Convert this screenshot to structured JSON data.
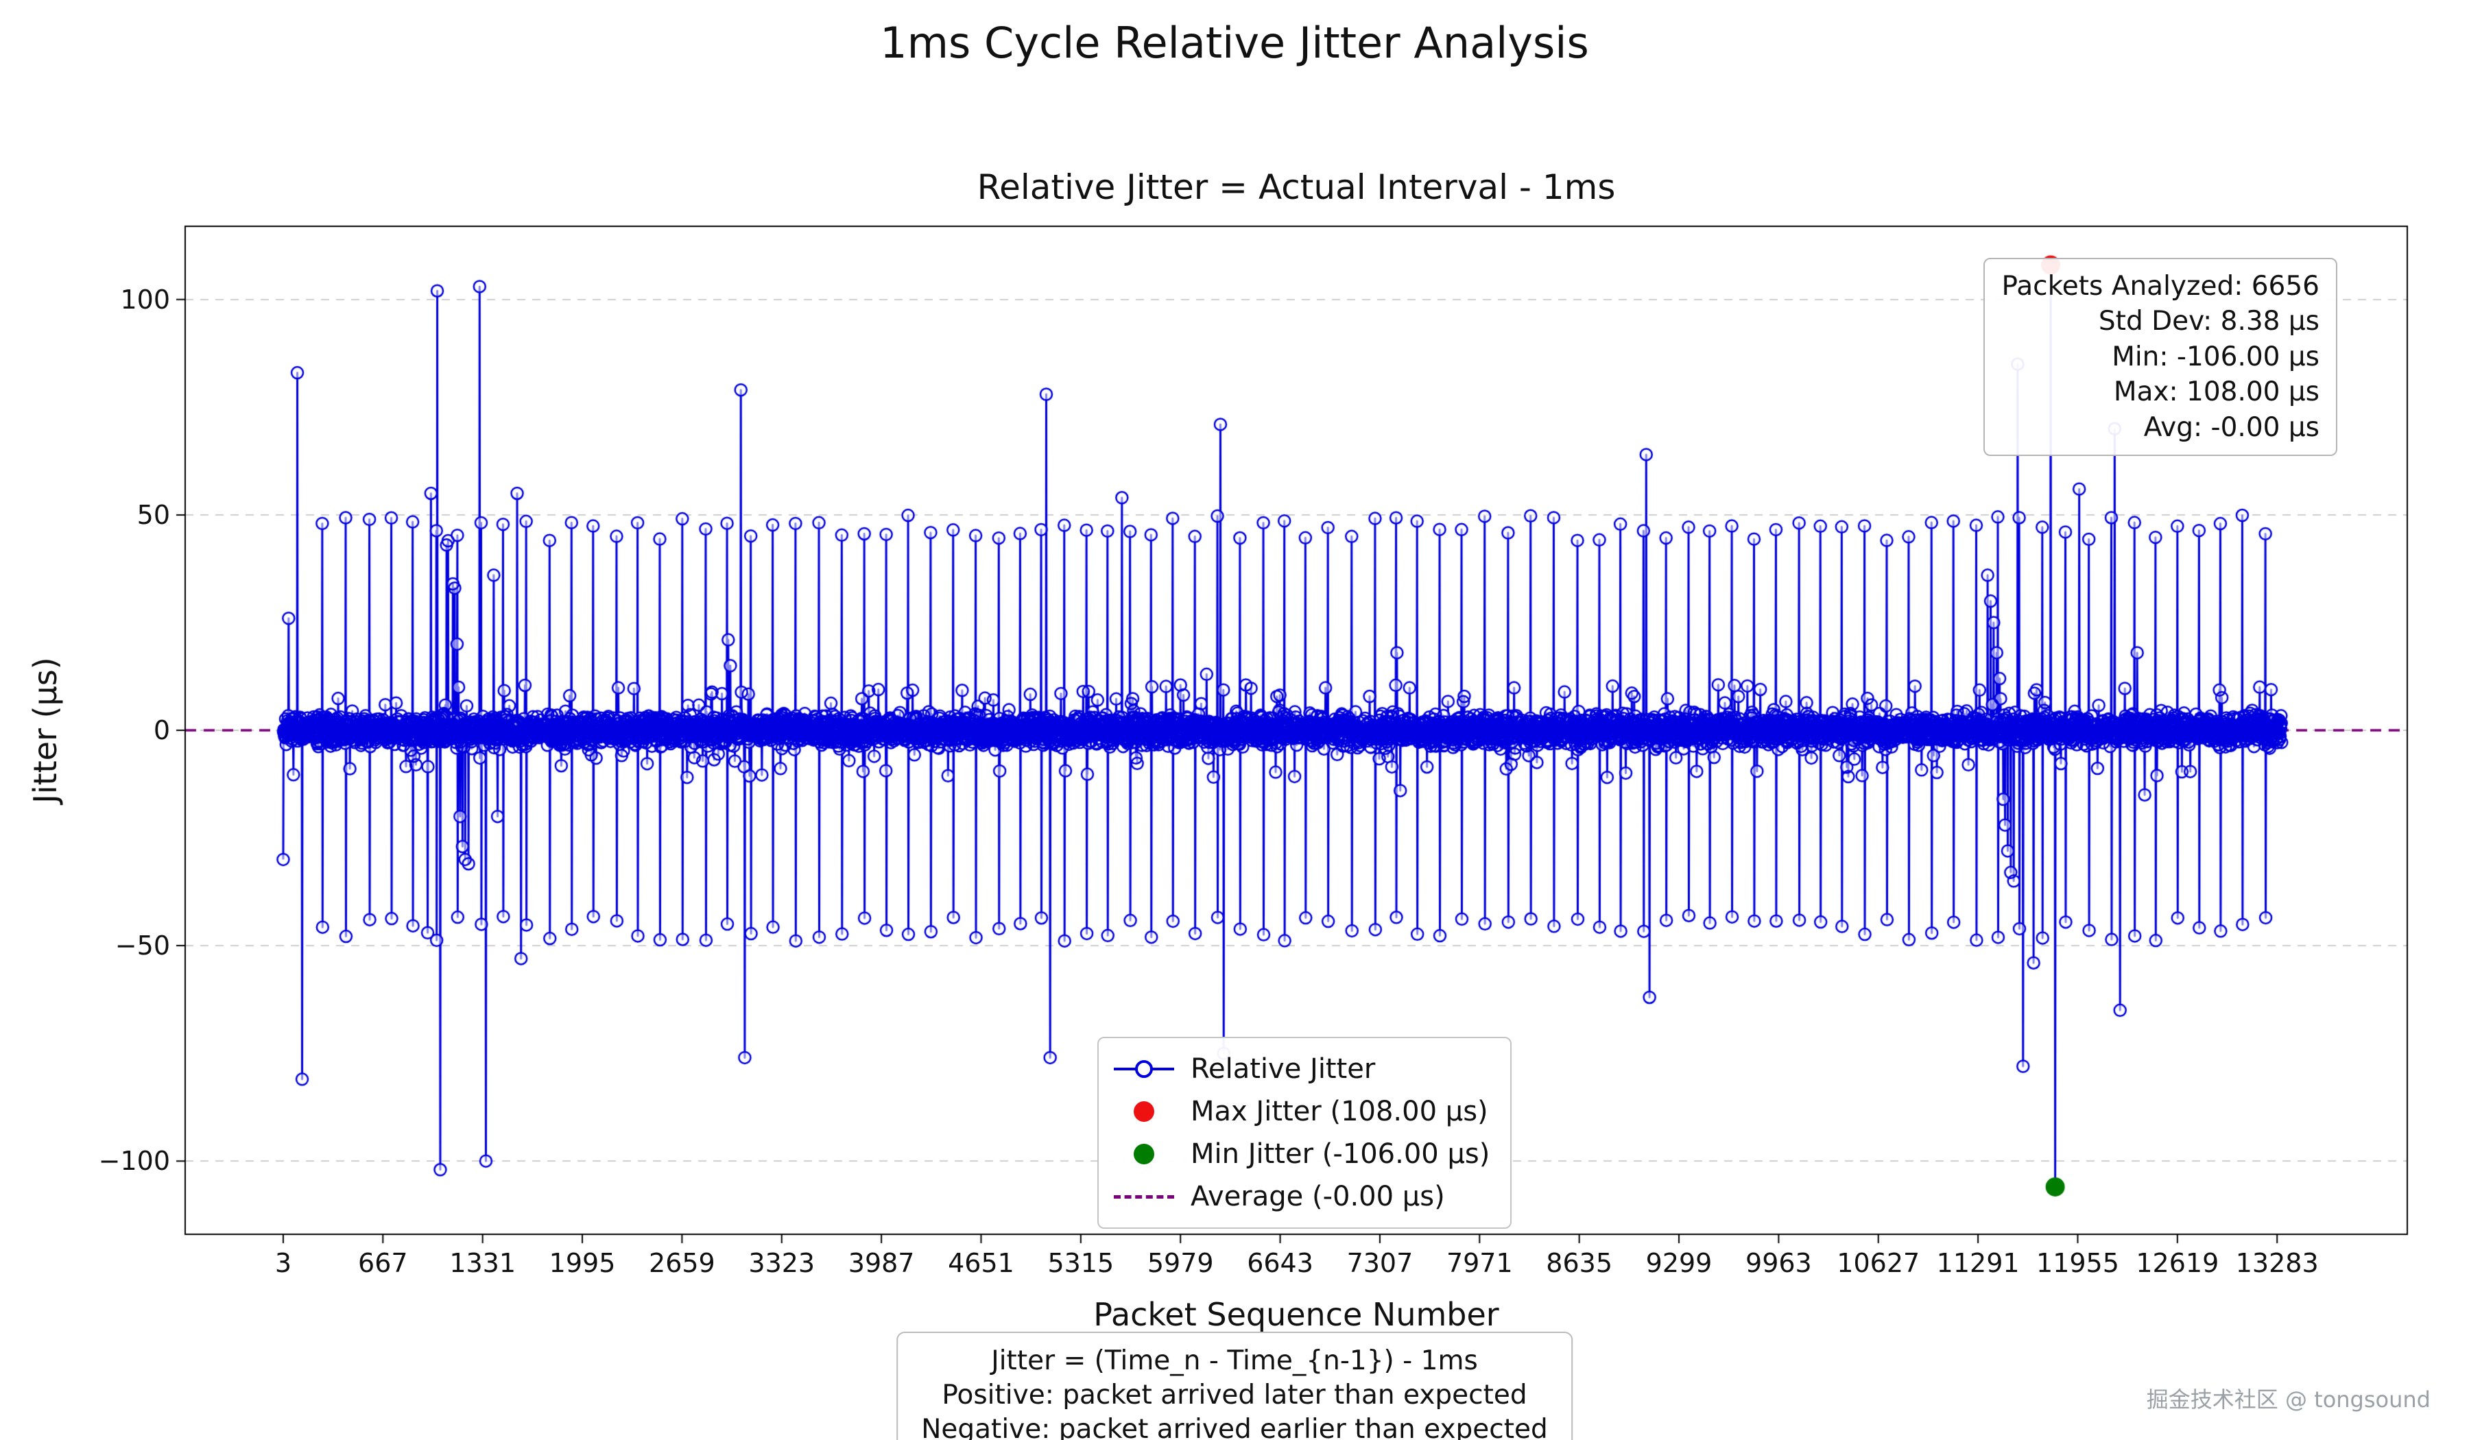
{
  "figure": {
    "title": "1ms Cycle Relative Jitter Analysis"
  },
  "chart_data": {
    "type": "line",
    "title": "1ms Cycle Relative Jitter Analysis",
    "axes_title": "Relative Jitter = Actual Interval - 1ms",
    "xlabel": "Packet Sequence Number",
    "ylabel": "Jitter (µs)",
    "xlim": [
      -650,
      14150
    ],
    "ylim": [
      -117,
      117
    ],
    "x_ticks": [
      3,
      667,
      1331,
      1995,
      2659,
      3323,
      3987,
      4651,
      5315,
      5979,
      6643,
      7307,
      7971,
      8635,
      9299,
      9963,
      10627,
      11291,
      11955,
      12619,
      13283
    ],
    "y_ticks": [
      -100,
      -50,
      0,
      50,
      100
    ],
    "y_tick_labels": [
      "−100",
      "−50",
      "0",
      "50",
      "100"
    ],
    "grid": "horizontal-dashed",
    "legend_position": "lower-center",
    "series_name": "Relative Jitter",
    "average_value": 0,
    "max_point": {
      "x": 11775,
      "y": 108
    },
    "min_point": {
      "x": 11805,
      "y": -106
    },
    "series": {
      "n_points": 6656,
      "x_start": 3,
      "x_step": 2,
      "baseline_range": [
        -5,
        6
      ],
      "spike_period_points": 74,
      "spike_amp_range": [
        44,
        50
      ],
      "spike_start_index": 130,
      "outliers": [
        [
          3,
          -30
        ],
        [
          39,
          26
        ],
        [
          97,
          83
        ],
        [
          129,
          -81
        ],
        [
          965,
          -47
        ],
        [
          987,
          55
        ],
        [
          1029,
          102
        ],
        [
          1049,
          -102
        ],
        [
          1091,
          43
        ],
        [
          1101,
          44
        ],
        [
          1133,
          34
        ],
        [
          1145,
          33
        ],
        [
          1161,
          20
        ],
        [
          1171,
          10
        ],
        [
          1181,
          -20
        ],
        [
          1197,
          -27
        ],
        [
          1215,
          -30
        ],
        [
          1237,
          -31
        ],
        [
          1311,
          103
        ],
        [
          1353,
          -100
        ],
        [
          1405,
          36
        ],
        [
          1431,
          -20
        ],
        [
          1561,
          55
        ],
        [
          1587,
          -53
        ],
        [
          2967,
          21
        ],
        [
          2981,
          15
        ],
        [
          3051,
          79
        ],
        [
          3077,
          -76
        ],
        [
          5085,
          78
        ],
        [
          5111,
          -76
        ],
        [
          5331,
          9
        ],
        [
          5589,
          54
        ],
        [
          6153,
          13
        ],
        [
          6245,
          71
        ],
        [
          6267,
          -75
        ],
        [
          7421,
          18
        ],
        [
          7443,
          -14
        ],
        [
          9081,
          64
        ],
        [
          9103,
          -62
        ],
        [
          11355,
          36
        ],
        [
          11375,
          30
        ],
        [
          11395,
          25
        ],
        [
          11415,
          18
        ],
        [
          11435,
          12
        ],
        [
          11459,
          -16
        ],
        [
          11471,
          -22
        ],
        [
          11489,
          -28
        ],
        [
          11509,
          -33
        ],
        [
          11529,
          -35
        ],
        [
          11555,
          85
        ],
        [
          11591,
          -78
        ],
        [
          11661,
          -54
        ],
        [
          11965,
          56
        ],
        [
          12201,
          70
        ],
        [
          12237,
          -65
        ],
        [
          12351,
          18
        ],
        [
          12401,
          -15
        ]
      ]
    },
    "colors": {
      "series": "#0000e0",
      "max": "#ee1111",
      "min": "#007d00",
      "average": "#7b007b",
      "grid": "#c8c8c8",
      "spine": "#000000"
    }
  },
  "stats_box": {
    "packets_analyzed": 6656,
    "std_dev_us": 8.38,
    "min_us": -106.0,
    "max_us": 108.0,
    "avg_us": -0.0,
    "lines": [
      "Packets Analyzed: 6656",
      "Std Dev: 8.38 µs",
      "Min: -106.00 µs",
      "Max: 108.00 µs",
      "Avg: -0.00 µs"
    ]
  },
  "legend": {
    "items": [
      {
        "label": "Relative Jitter",
        "symbol": "line-circle-marker"
      },
      {
        "label": "Max Jitter (108.00 µs)",
        "symbol": "red-dot"
      },
      {
        "label": "Min Jitter (-106.00 µs)",
        "symbol": "green-dot"
      },
      {
        "label": "Average (-0.00 µs)",
        "symbol": "purple-dashed-line"
      }
    ]
  },
  "note": {
    "lines": [
      "Jitter = (Time_n - Time_{n-1}) - 1ms",
      "Positive: packet arrived later than expected",
      "Negative: packet arrived earlier than expected"
    ]
  },
  "watermark": "掘金技术社区 @ tongsound"
}
